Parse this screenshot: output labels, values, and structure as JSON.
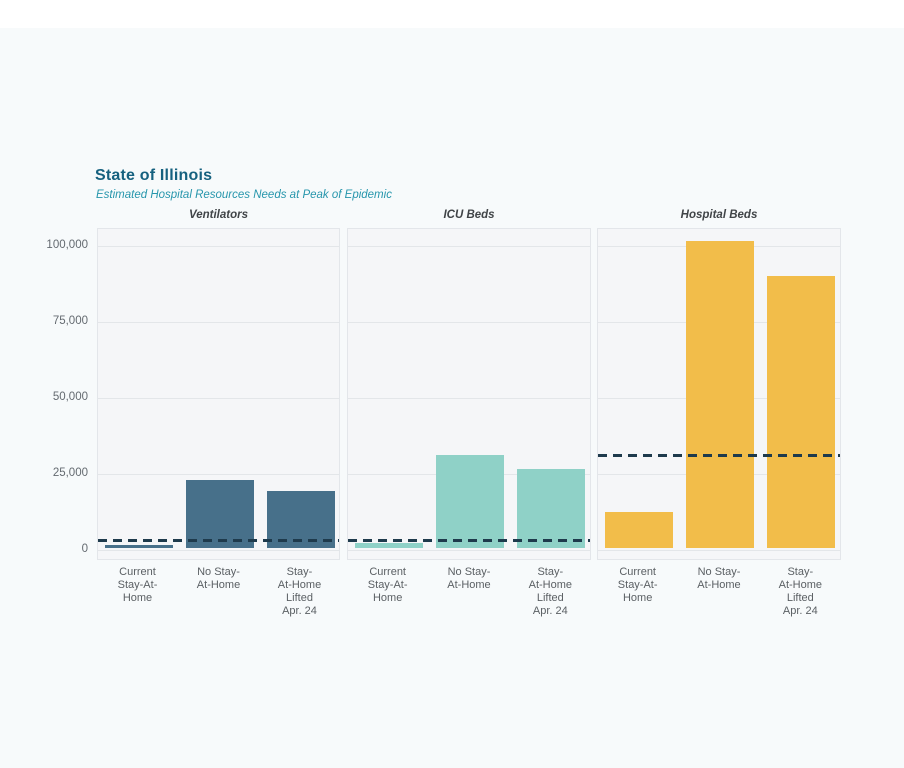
{
  "page": {
    "background_color": "#f7fafb",
    "topbar_color": "#ffffff"
  },
  "header": {
    "title": "State of Illinois",
    "subtitle": "Estimated Hospital Resources Needs at Peak of Epidemic",
    "title_color": "#16617f",
    "subtitle_color": "#2796ac"
  },
  "chart_data": {
    "type": "bar",
    "title": "State of Illinois",
    "subtitle": "Estimated Hospital Resources Needs at Peak of Epidemic",
    "facets": [
      "Ventilators",
      "ICU Beds",
      "Hospital Beds"
    ],
    "categories": [
      "Current Stay-At-Home",
      "No Stay-At-Home",
      "Stay-At-Home Lifted Apr. 24"
    ],
    "x_tick_lines": [
      [
        "Current",
        "Stay-At-",
        "Home"
      ],
      [
        "No Stay-",
        "At-Home"
      ],
      [
        "Stay-",
        "At-Home",
        "Lifted",
        "Apr. 24"
      ]
    ],
    "panels": [
      {
        "title": "Ventilators",
        "bar_color": "#47708a",
        "values": [
          1100,
          22400,
          18800
        ],
        "capacity_line": 3200
      },
      {
        "title": "ICU Beds",
        "bar_color": "#8fd1c7",
        "values": [
          1600,
          30600,
          26000
        ],
        "capacity_line": 3200
      },
      {
        "title": "Hospital Beds",
        "bar_color": "#f2bd4a",
        "values": [
          11800,
          101000,
          89500
        ],
        "capacity_line": 31200
      }
    ],
    "capacity_line_color": "#1e3a4c",
    "capacity_line_style": "dashed",
    "y_ticks": [
      0,
      25000,
      50000,
      75000,
      100000
    ],
    "y_tick_labels": [
      "0",
      "25,000",
      "50,000",
      "75,000",
      "100,000"
    ],
    "ylim": [
      -3700,
      105600
    ],
    "xlabel": "",
    "ylabel": "",
    "grid": true,
    "legend": "none",
    "panel_background": "#f5f6f8",
    "gridline_color": "#e3e6e9"
  }
}
